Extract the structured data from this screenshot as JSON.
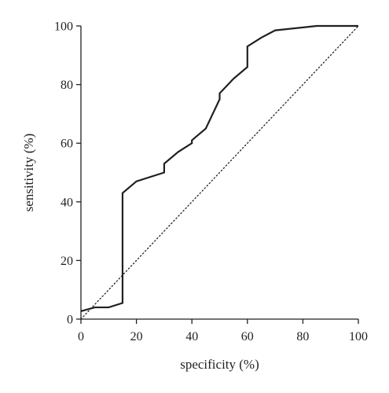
{
  "chart_data": {
    "type": "line",
    "xlabel": "specificity (%)",
    "ylabel": "sensitivity (%)",
    "xlim": [
      0,
      100
    ],
    "ylim": [
      0,
      100
    ],
    "x_ticks": [
      0,
      20,
      40,
      60,
      80,
      100
    ],
    "y_ticks": [
      0,
      20,
      40,
      60,
      80,
      100
    ],
    "grid": false,
    "legend": "none",
    "series": [
      {
        "style": "solid",
        "color": "#231f20",
        "points": [
          [
            0,
            2.7
          ],
          [
            5,
            4
          ],
          [
            10,
            4
          ],
          [
            15,
            5.5
          ],
          [
            15,
            43
          ],
          [
            20,
            47
          ],
          [
            30,
            50
          ],
          [
            30,
            53
          ],
          [
            35,
            57
          ],
          [
            40,
            60
          ],
          [
            40,
            61
          ],
          [
            45,
            65
          ],
          [
            50,
            75
          ],
          [
            50,
            77
          ],
          [
            55,
            82
          ],
          [
            60,
            86
          ],
          [
            60,
            93
          ],
          [
            65,
            96
          ],
          [
            70,
            98.5
          ],
          [
            85,
            100
          ],
          [
            100,
            100
          ]
        ]
      },
      {
        "style": "dotted",
        "color": "#231f20",
        "points": [
          [
            0,
            0
          ],
          [
            100,
            100
          ]
        ]
      }
    ]
  }
}
